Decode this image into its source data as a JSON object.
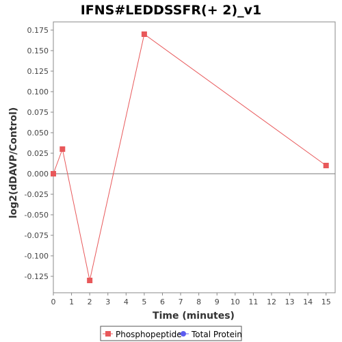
{
  "chart_data": {
    "type": "line",
    "title": "IFNS#LEDDSSFR(+ 2)_v1",
    "xlabel": "Time (minutes)",
    "ylabel": "log2(dDAVP/Control)",
    "xlim": [
      0,
      15.5
    ],
    "ylim": [
      -0.145,
      0.185
    ],
    "x_ticks": [
      0,
      1,
      2,
      3,
      4,
      5,
      6,
      7,
      8,
      9,
      10,
      11,
      12,
      13,
      14,
      15
    ],
    "y_ticks": [
      0.175,
      0.15,
      0.125,
      0.1,
      0.075,
      0.05,
      0.025,
      0.0,
      -0.025,
      -0.05,
      -0.075,
      -0.1,
      -0.125
    ],
    "y_tick_labels": [
      "0.175",
      "0.150",
      "0.125",
      "0.100",
      "0.075",
      "0.050",
      "0.025",
      "0.000",
      "-0.025",
      "-0.050",
      "-0.075",
      "-0.100",
      "-0.125"
    ],
    "zero_line": true,
    "grid": false,
    "legend_position": "bottom",
    "series": [
      {
        "name": "Phosphopeptide",
        "color": "#e8585a",
        "marker": "square",
        "x": [
          0,
          0.5,
          2,
          5,
          15
        ],
        "y": [
          0.0,
          0.03,
          -0.13,
          0.17,
          0.01
        ]
      },
      {
        "name": "Total Protein",
        "color": "#5b5bf0",
        "marker": "circle",
        "x": [],
        "y": []
      }
    ]
  }
}
